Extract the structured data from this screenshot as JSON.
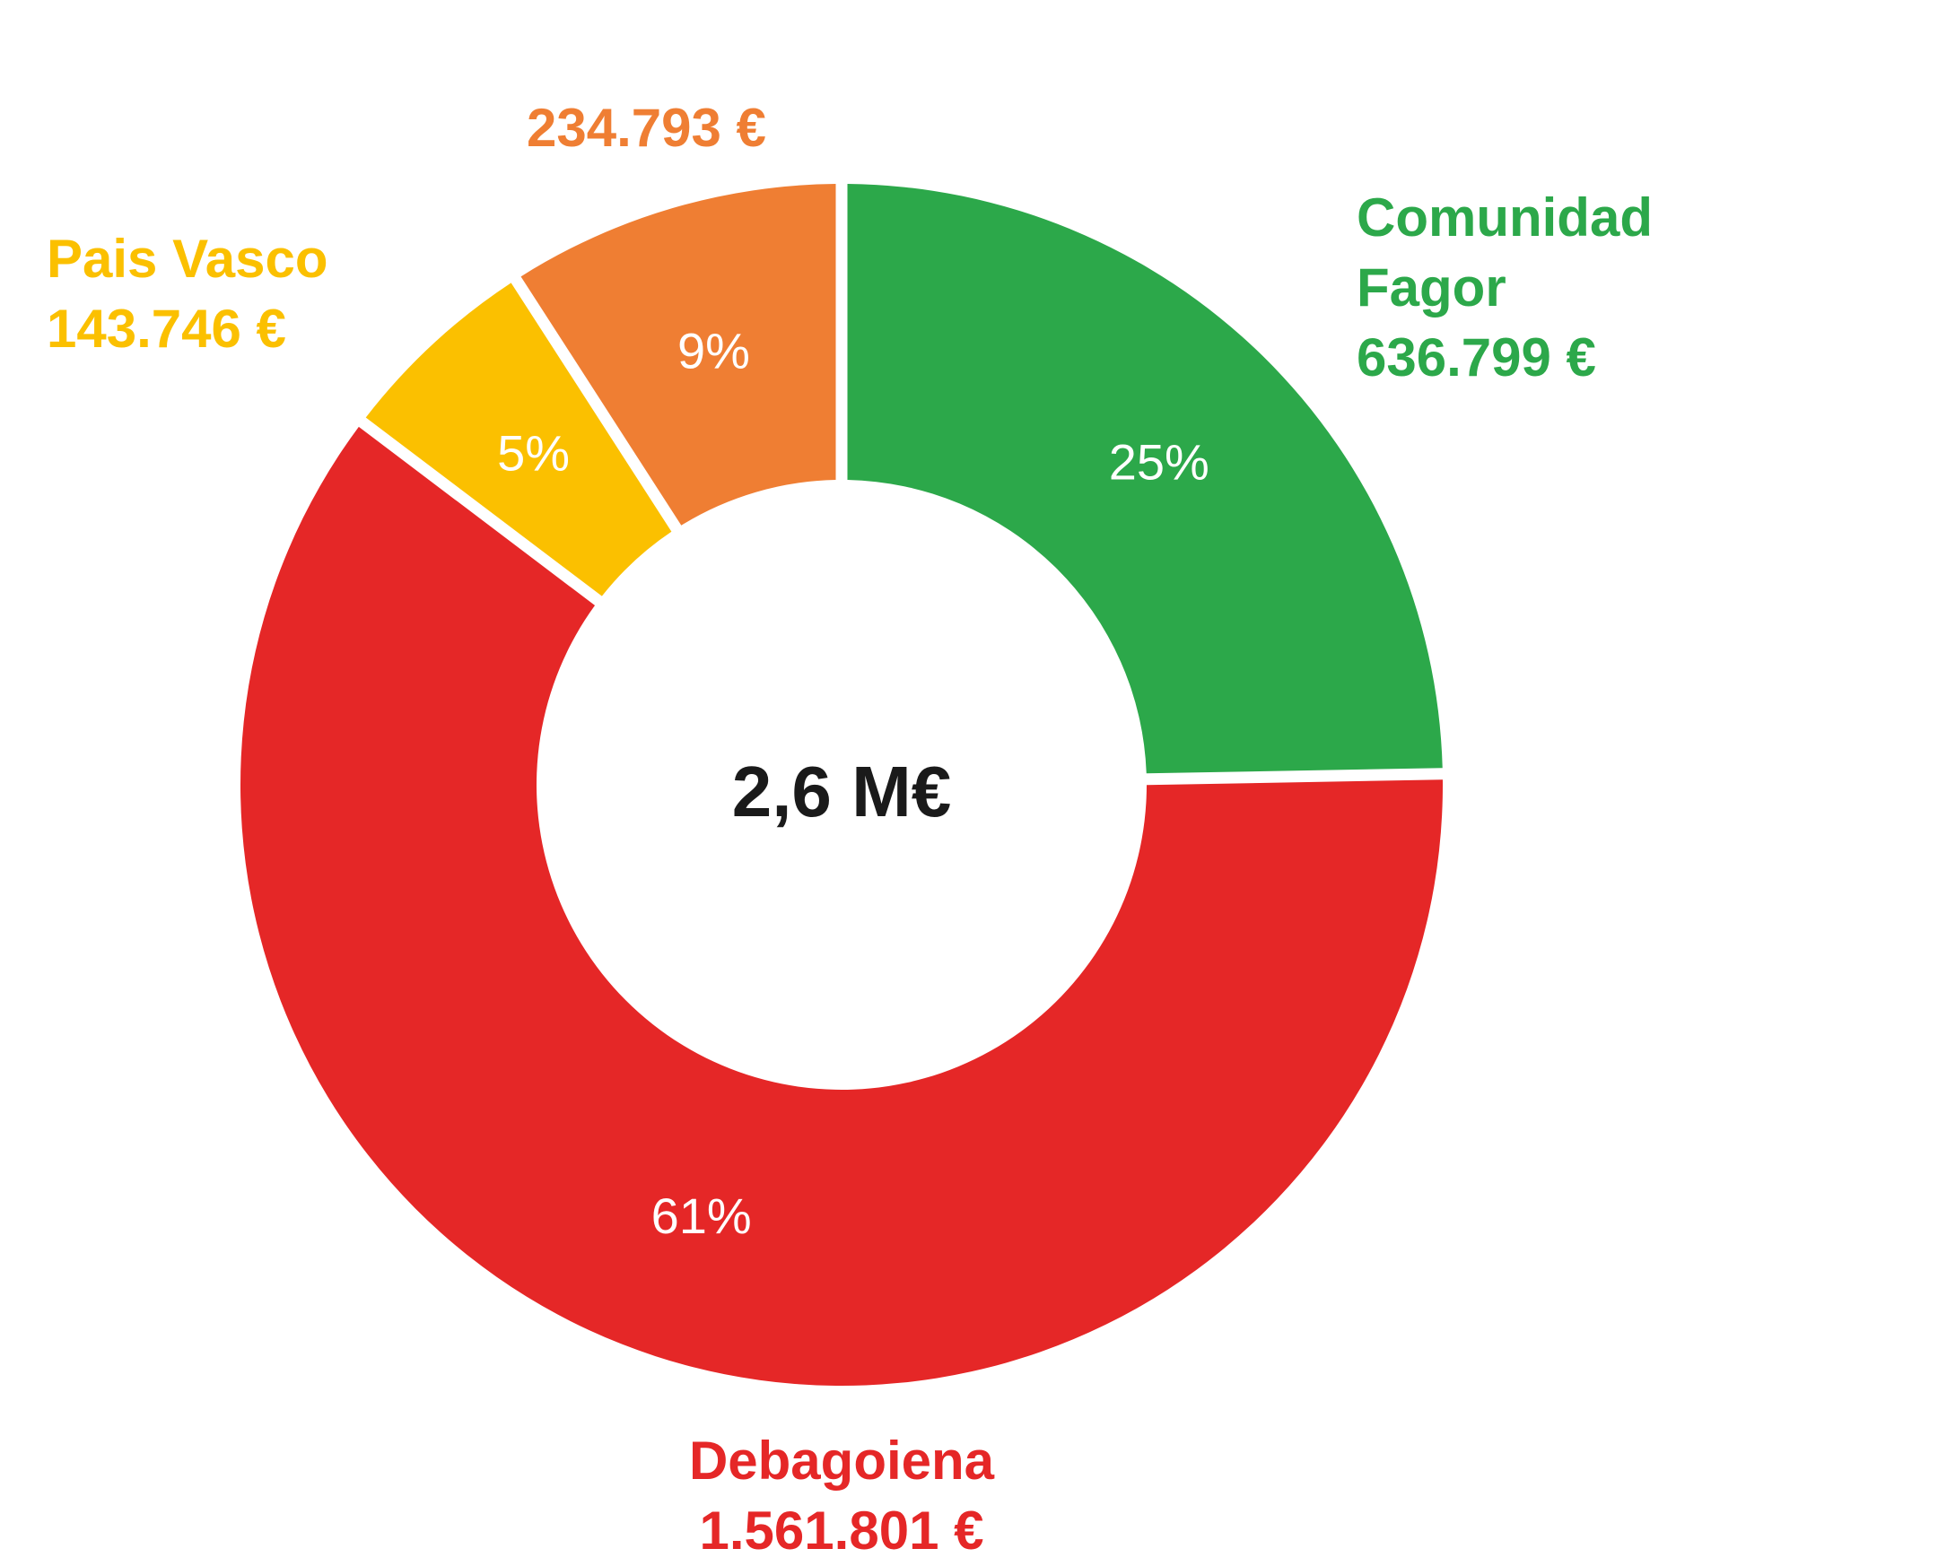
{
  "chart_data": {
    "type": "pie",
    "donut": true,
    "center_label": "2,6 M€",
    "slices": [
      {
        "category": "Comunidad Fagor",
        "name_lines": [
          "Comunidad",
          "Fagor"
        ],
        "value": 636799,
        "value_label": "636.799 €",
        "percent_label": "25%",
        "color": "#2ca84a"
      },
      {
        "category": "Debagoiena",
        "name_lines": [
          "Debagoiena"
        ],
        "value": 1561801,
        "value_label": "1.561.801 €",
        "percent_label": "61%",
        "color": "#e52727"
      },
      {
        "category": "Pais Vasco",
        "name_lines": [
          "Pais Vasco"
        ],
        "value": 143746,
        "value_label": "143.746 €",
        "percent_label": "5%",
        "color": "#fbc000"
      },
      {
        "category": "",
        "name_lines": [],
        "value": 234793,
        "value_label": "234.793 €",
        "percent_label": "9%",
        "color": "#ef7e33"
      }
    ]
  }
}
